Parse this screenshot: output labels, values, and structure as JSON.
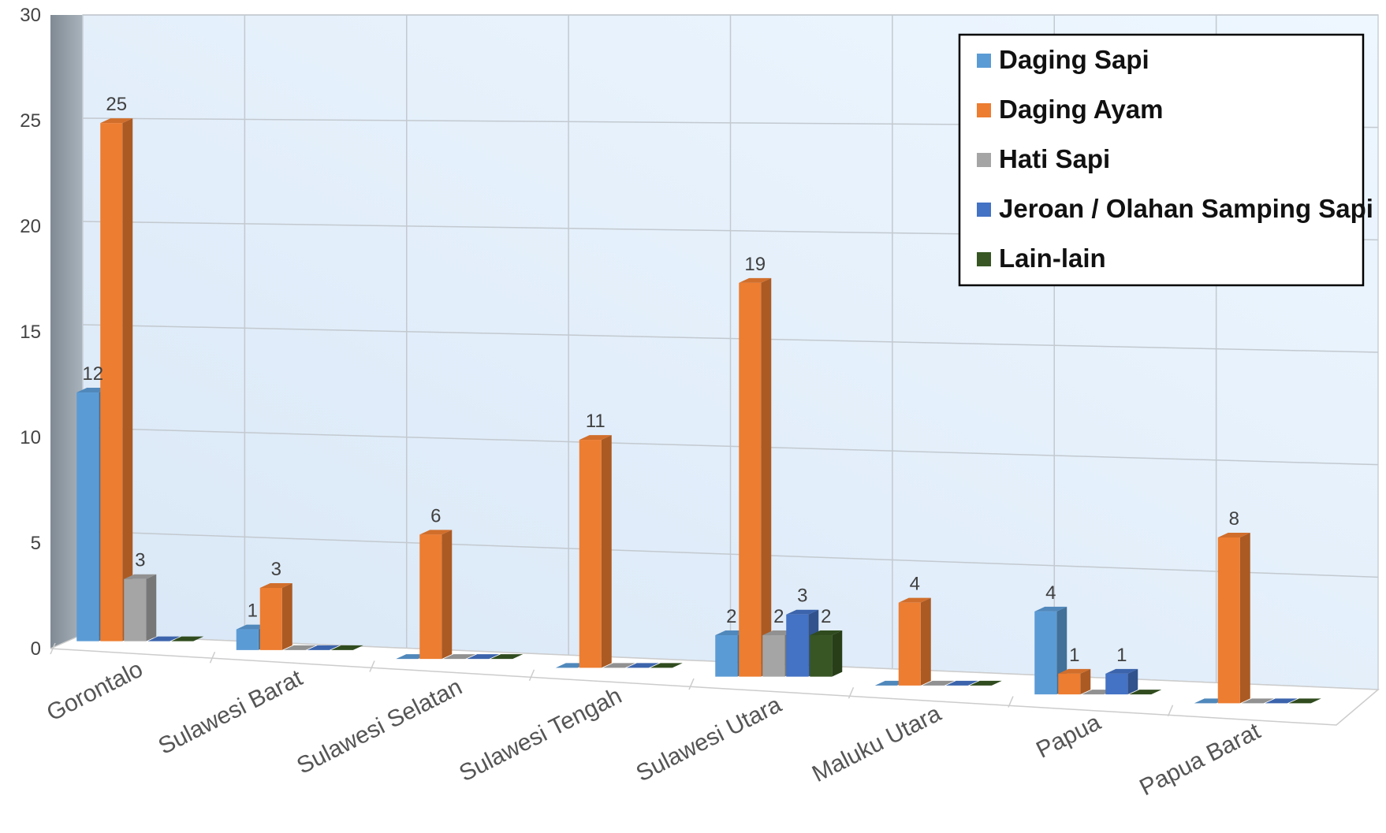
{
  "chart_data": {
    "type": "bar",
    "title": "",
    "xlabel": "",
    "ylabel": "",
    "ylim": [
      0,
      30
    ],
    "yticks": [
      0,
      5,
      10,
      15,
      20,
      25,
      30
    ],
    "grid": true,
    "legend_position": "top-right",
    "categories": [
      "Gorontalo",
      "Sulawesi Barat",
      "Sulawesi Selatan",
      "Sulawesi Tengah",
      "Sulawesi Utara",
      "Maluku Utara",
      "Papua",
      "Papua Barat"
    ],
    "series": [
      {
        "name": "Daging Sapi",
        "color": "#5b9bd5",
        "values": [
          12,
          1,
          0,
          0,
          2,
          0,
          4,
          0
        ]
      },
      {
        "name": "Daging Ayam",
        "color": "#ed7d31",
        "values": [
          25,
          3,
          6,
          11,
          19,
          4,
          1,
          8
        ]
      },
      {
        "name": "Hati Sapi",
        "color": "#a5a5a5",
        "values": [
          3,
          0,
          0,
          0,
          2,
          0,
          0,
          0
        ]
      },
      {
        "name": "Jeroan / Olahan Samping Sapi",
        "color": "#4472c4",
        "values": [
          0,
          0,
          0,
          0,
          3,
          0,
          1,
          0
        ]
      },
      {
        "name": "Lain-lain",
        "color": "#375623",
        "values": [
          0,
          0,
          0,
          0,
          2,
          0,
          0,
          0
        ]
      }
    ]
  }
}
